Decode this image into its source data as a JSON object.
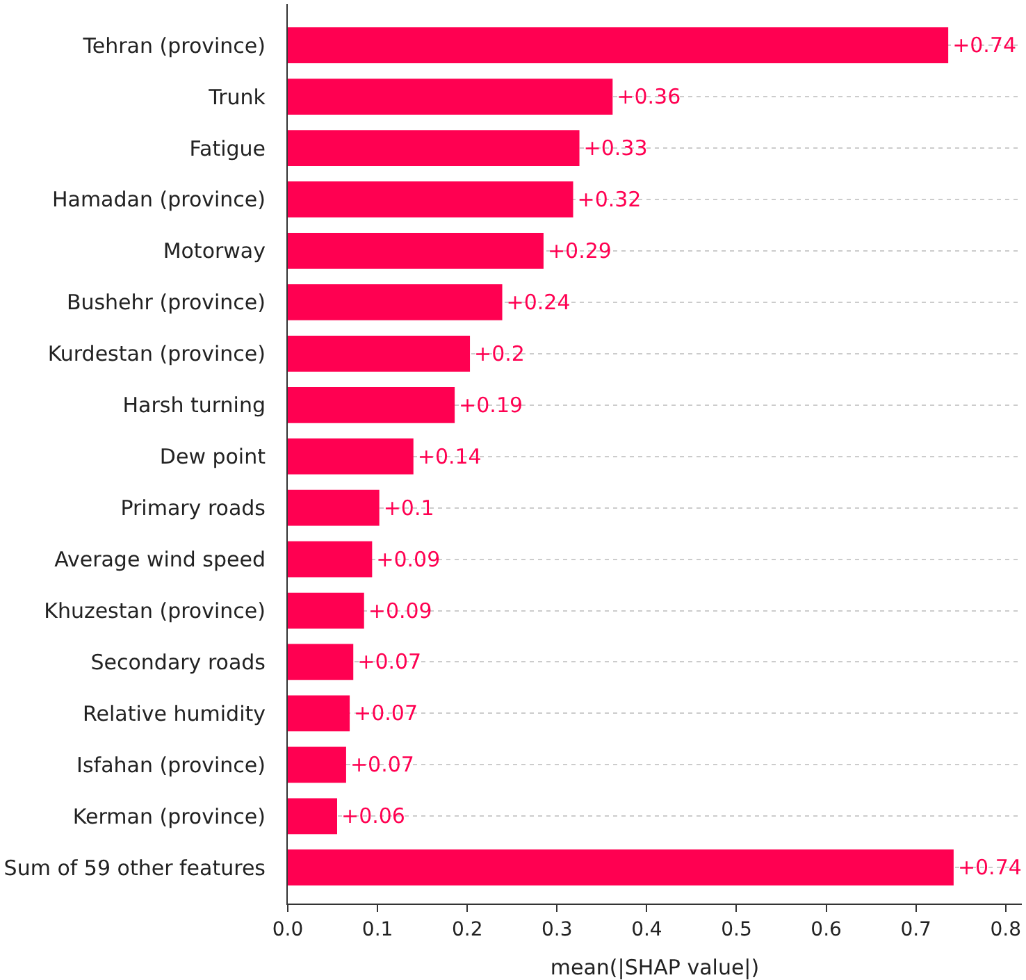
{
  "chart_data": {
    "type": "bar",
    "orientation": "horizontal",
    "xlabel": "mean(|SHAP value|)",
    "categories": [
      "Tehran (province)",
      "Trunk",
      "Fatigue",
      "Hamadan (province)",
      "Motorway",
      "Bushehr (province)",
      "Kurdestan (province)",
      "Harsh turning",
      "Dew point",
      "Primary roads",
      "Average wind speed",
      "Khuzestan (province)",
      "Secondary roads",
      "Relative humidity",
      "Isfahan (province)",
      "Kerman (province)",
      "Sum of 59 other features"
    ],
    "values": [
      0.736,
      0.362,
      0.325,
      0.318,
      0.285,
      0.239,
      0.203,
      0.186,
      0.14,
      0.102,
      0.094,
      0.085,
      0.073,
      0.069,
      0.065,
      0.055,
      0.742
    ],
    "value_labels": [
      "+0.74",
      "+0.36",
      "+0.33",
      "+0.32",
      "+0.29",
      "+0.24",
      "+0.2",
      "+0.19",
      "+0.14",
      "+0.1",
      "+0.09",
      "+0.09",
      "+0.07",
      "+0.07",
      "+0.07",
      "+0.06",
      "+0.74"
    ],
    "color": "#ff0051",
    "xlim": [
      0,
      0.818
    ],
    "xticks": [
      {
        "value": 0,
        "label": "0.0"
      },
      0.1,
      0.2,
      0.3,
      0.4,
      0.5,
      0.6,
      0.7,
      0.8
    ],
    "grid": "y",
    "legend": false
  }
}
